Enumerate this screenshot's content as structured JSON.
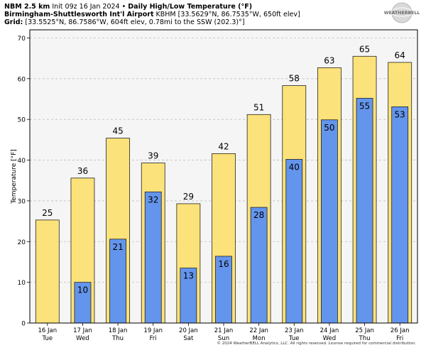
{
  "header": {
    "model": "NBM 2.5 km",
    "init": "Init 09z 16 Jan 2024",
    "bullet": "•",
    "product": "Daily High/Low Temperature (°F)",
    "station_name": "Birmingham-Shuttlesworth Int'l Airport",
    "station_info": "KBHM [33.5629°N, 86.7535°W, 650ft elev]",
    "grid_label": "Grid:",
    "grid_info": "[33.5525°N, 86.7586°W, 604ft elev, 0.78mi to the SSW (202.3)°]"
  },
  "logo": {
    "text": "WEATHERBELL"
  },
  "footer": {
    "text": "© 2024 WeatherBELL Analytics, LLC. All rights reserved. License required for commercial distribution."
  },
  "colors": {
    "high": "#fce27a",
    "low": "#6495ed",
    "plot_bg": "#f5f5f5",
    "grid": "#bfbfbf"
  },
  "chart_data": {
    "type": "bar",
    "title": "Daily High/Low Temperature (°F)",
    "ylabel": "Temperature [°F]",
    "xlabel": "",
    "ylim": [
      0,
      72
    ],
    "yticks": [
      0,
      10,
      20,
      30,
      40,
      50,
      60,
      70
    ],
    "grid": true,
    "categories": [
      {
        "date": "16 Jan",
        "day": "Tue"
      },
      {
        "date": "17 Jan",
        "day": "Wed"
      },
      {
        "date": "18 Jan",
        "day": "Thu"
      },
      {
        "date": "19 Jan",
        "day": "Fri"
      },
      {
        "date": "20 Jan",
        "day": "Sat"
      },
      {
        "date": "21 Jan",
        "day": "Sun"
      },
      {
        "date": "22 Jan",
        "day": "Mon"
      },
      {
        "date": "23 Jan",
        "day": "Tue"
      },
      {
        "date": "24 Jan",
        "day": "Wed"
      },
      {
        "date": "25 Jan",
        "day": "Thu"
      },
      {
        "date": "26 Jan",
        "day": "Fri"
      }
    ],
    "series": [
      {
        "name": "High",
        "values": [
          25,
          36,
          45,
          39,
          29,
          42,
          51,
          58,
          63,
          65,
          64
        ],
        "plot_values": [
          25.3,
          35.6,
          45.4,
          39.3,
          29.3,
          41.6,
          51.2,
          58.3,
          62.7,
          65.5,
          64.0
        ]
      },
      {
        "name": "Low",
        "values": [
          null,
          10,
          21,
          32,
          13,
          16,
          28,
          40,
          50,
          55,
          53
        ],
        "plot_values": [
          null,
          10.0,
          20.6,
          32.2,
          13.5,
          16.4,
          28.4,
          40.2,
          49.9,
          55.2,
          53.1
        ]
      }
    ]
  }
}
